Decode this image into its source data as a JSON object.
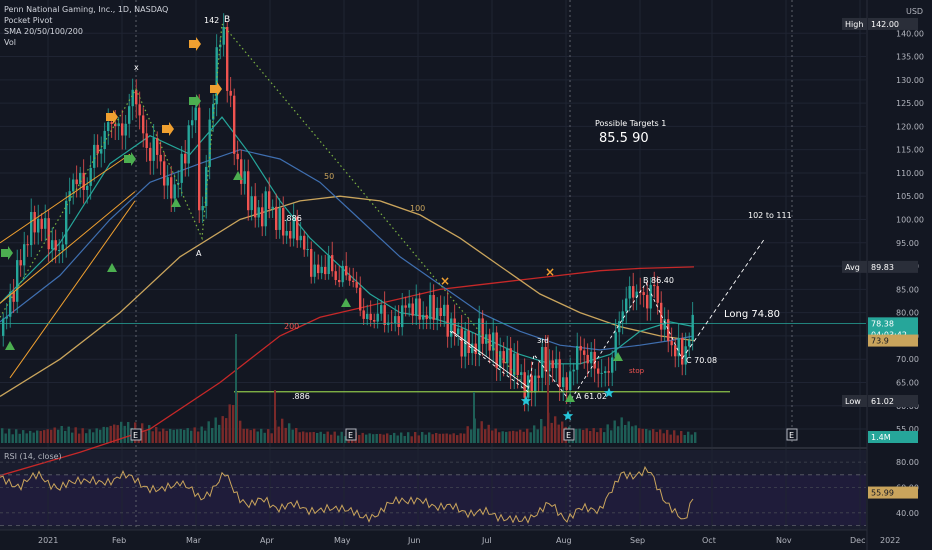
{
  "legend": {
    "symbol_line": "Penn National Gaming, Inc., 1D, NASDAQ",
    "indicators": [
      "Pocket Pivot",
      "SMA 20/50/100/200",
      "Vol"
    ]
  },
  "rsi_label": "RSI (14, close)",
  "currency": "USD",
  "colors": {
    "bg": "#131722",
    "up": "#26a69a",
    "down": "#ef5350",
    "grid": "#1f2433",
    "sma20": "#26a69a",
    "sma50": "#3f6fb0",
    "sma100": "#c9a45c",
    "sma200": "#c62828",
    "pattern": "#2e7d32",
    "annot": "#ffffff",
    "orange": "#f0a030"
  },
  "chart_data": {
    "type": "candlestick",
    "x_axis_labels": [
      "2021",
      "Feb",
      "Mar",
      "Apr",
      "May",
      "Jun",
      "Jul",
      "Aug",
      "Sep",
      "Oct",
      "Nov",
      "Dec",
      "2022"
    ],
    "price_axis": {
      "range": [
        52,
        145
      ],
      "ticks": [
        55.0,
        60.0,
        65.0,
        70.0,
        75.0,
        80.0,
        85.0,
        90.0,
        95.0,
        100.0,
        105.0,
        110.0,
        115.0,
        120.0,
        125.0,
        130.0,
        135.0,
        140.0
      ]
    },
    "price_path": [
      [
        0,
        75
      ],
      [
        8,
        82
      ],
      [
        18,
        90
      ],
      [
        28,
        98
      ],
      [
        38,
        100
      ],
      [
        48,
        96
      ],
      [
        58,
        92
      ],
      [
        66,
        104
      ],
      [
        74,
        110
      ],
      [
        84,
        106
      ],
      [
        92,
        114
      ],
      [
        100,
        116
      ],
      [
        110,
        122
      ],
      [
        120,
        118
      ],
      [
        128,
        124
      ],
      [
        134,
        128
      ],
      [
        140,
        120
      ],
      [
        146,
        114
      ],
      [
        152,
        116
      ],
      [
        160,
        112
      ],
      [
        168,
        105
      ],
      [
        175,
        108
      ],
      [
        182,
        112
      ],
      [
        188,
        120
      ],
      [
        194,
        124
      ],
      [
        200,
        96
      ],
      [
        205,
        112
      ],
      [
        212,
        128
      ],
      [
        218,
        138
      ],
      [
        222,
        142
      ],
      [
        226,
        130
      ],
      [
        232,
        118
      ],
      [
        238,
        110
      ],
      [
        246,
        106
      ],
      [
        256,
        100
      ],
      [
        266,
        104
      ],
      [
        276,
        100
      ],
      [
        286,
        97
      ],
      [
        296,
        98
      ],
      [
        306,
        92
      ],
      [
        316,
        88
      ],
      [
        326,
        91
      ],
      [
        336,
        87
      ],
      [
        346,
        89
      ],
      [
        356,
        84
      ],
      [
        364,
        78
      ],
      [
        372,
        79
      ],
      [
        380,
        80
      ],
      [
        390,
        77
      ],
      [
        400,
        80
      ],
      [
        410,
        82
      ],
      [
        420,
        79
      ],
      [
        430,
        81
      ],
      [
        440,
        80
      ],
      [
        450,
        77
      ],
      [
        460,
        74
      ],
      [
        470,
        72
      ],
      [
        480,
        76
      ],
      [
        490,
        73
      ],
      [
        500,
        70
      ],
      [
        510,
        70
      ],
      [
        520,
        66
      ],
      [
        528,
        63
      ],
      [
        534,
        66
      ],
      [
        542,
        70
      ],
      [
        550,
        69
      ],
      [
        558,
        67
      ],
      [
        566,
        63
      ],
      [
        572,
        70
      ],
      [
        580,
        72
      ],
      [
        588,
        70
      ],
      [
        596,
        68
      ],
      [
        604,
        66
      ],
      [
        610,
        70
      ],
      [
        616,
        76
      ],
      [
        622,
        82
      ],
      [
        628,
        84
      ],
      [
        636,
        85
      ],
      [
        644,
        82
      ],
      [
        652,
        86.4
      ],
      [
        658,
        80
      ],
      [
        664,
        76
      ],
      [
        670,
        73
      ],
      [
        676,
        72
      ],
      [
        682,
        70.5
      ],
      [
        688,
        75
      ],
      [
        694,
        78
      ]
    ],
    "volume_path": [
      [
        0,
        1.2
      ],
      [
        30,
        1.0
      ],
      [
        60,
        1.4
      ],
      [
        90,
        1.1
      ],
      [
        120,
        1.8
      ],
      [
        140,
        1.6
      ],
      [
        160,
        1.2
      ],
      [
        200,
        1.3
      ],
      [
        212,
        2.0
      ],
      [
        222,
        2.2
      ],
      [
        236,
        4.4
      ],
      [
        240,
        1.3
      ],
      [
        270,
        1.1
      ],
      [
        276,
        2.2
      ],
      [
        300,
        1.0
      ],
      [
        340,
        0.9
      ],
      [
        380,
        0.8
      ],
      [
        420,
        0.9
      ],
      [
        460,
        0.8
      ],
      [
        474,
        2.0
      ],
      [
        500,
        1.0
      ],
      [
        530,
        1.2
      ],
      [
        548,
        2.5
      ],
      [
        570,
        1.3
      ],
      [
        600,
        1.2
      ],
      [
        620,
        2.1
      ],
      [
        640,
        1.3
      ],
      [
        660,
        1.1
      ],
      [
        690,
        0.9
      ]
    ],
    "rsi_axis": {
      "range": [
        28,
        88
      ],
      "ticks": [
        40.0,
        60.0,
        80.0
      ]
    },
    "rsi_path": [
      [
        0,
        66
      ],
      [
        20,
        62
      ],
      [
        40,
        70
      ],
      [
        60,
        58
      ],
      [
        80,
        68
      ],
      [
        100,
        62
      ],
      [
        120,
        70
      ],
      [
        140,
        64
      ],
      [
        160,
        56
      ],
      [
        180,
        66
      ],
      [
        200,
        50
      ],
      [
        215,
        62
      ],
      [
        225,
        70
      ],
      [
        235,
        56
      ],
      [
        250,
        46
      ],
      [
        265,
        50
      ],
      [
        280,
        44
      ],
      [
        300,
        46
      ],
      [
        320,
        40
      ],
      [
        340,
        46
      ],
      [
        360,
        36
      ],
      [
        380,
        40
      ],
      [
        400,
        52
      ],
      [
        420,
        48
      ],
      [
        440,
        46
      ],
      [
        460,
        42
      ],
      [
        480,
        40
      ],
      [
        500,
        38
      ],
      [
        520,
        32
      ],
      [
        535,
        40
      ],
      [
        550,
        46
      ],
      [
        566,
        36
      ],
      [
        580,
        42
      ],
      [
        600,
        44
      ],
      [
        615,
        60
      ],
      [
        622,
        72
      ],
      [
        636,
        70
      ],
      [
        650,
        72
      ],
      [
        664,
        52
      ],
      [
        676,
        38
      ],
      [
        684,
        32
      ],
      [
        694,
        55.99
      ]
    ],
    "sma20_path": [
      [
        0,
        82
      ],
      [
        60,
        95
      ],
      [
        110,
        112
      ],
      [
        150,
        118
      ],
      [
        190,
        114
      ],
      [
        222,
        122
      ],
      [
        250,
        114
      ],
      [
        280,
        104
      ],
      [
        310,
        96
      ],
      [
        340,
        90
      ],
      [
        370,
        84
      ],
      [
        400,
        80
      ],
      [
        430,
        79
      ],
      [
        460,
        77
      ],
      [
        490,
        74
      ],
      [
        520,
        71
      ],
      [
        550,
        69
      ],
      [
        580,
        69
      ],
      [
        610,
        71
      ],
      [
        640,
        76
      ],
      [
        670,
        78
      ],
      [
        694,
        77
      ]
    ],
    "sma50_path": [
      [
        0,
        78
      ],
      [
        60,
        88
      ],
      [
        110,
        100
      ],
      [
        150,
        108
      ],
      [
        200,
        112
      ],
      [
        240,
        115
      ],
      [
        280,
        113
      ],
      [
        320,
        108
      ],
      [
        360,
        100
      ],
      [
        400,
        92
      ],
      [
        440,
        86
      ],
      [
        480,
        80
      ],
      [
        520,
        76
      ],
      [
        560,
        73
      ],
      [
        600,
        72
      ],
      [
        640,
        73
      ],
      [
        670,
        74
      ],
      [
        694,
        75
      ]
    ],
    "sma100_path": [
      [
        0,
        62
      ],
      [
        60,
        70
      ],
      [
        120,
        80
      ],
      [
        180,
        92
      ],
      [
        240,
        100
      ],
      [
        300,
        104
      ],
      [
        340,
        105
      ],
      [
        380,
        104
      ],
      [
        420,
        101
      ],
      [
        460,
        96
      ],
      [
        500,
        90
      ],
      [
        540,
        84
      ],
      [
        580,
        80
      ],
      [
        620,
        77
      ],
      [
        660,
        75
      ],
      [
        694,
        74
      ]
    ],
    "sma200_path": [
      [
        0,
        45
      ],
      [
        80,
        50
      ],
      [
        150,
        55
      ],
      [
        220,
        65
      ],
      [
        280,
        75
      ],
      [
        320,
        79
      ],
      [
        360,
        81
      ],
      [
        400,
        83
      ],
      [
        440,
        85
      ],
      [
        480,
        86
      ],
      [
        520,
        87
      ],
      [
        560,
        88
      ],
      [
        600,
        89
      ],
      [
        640,
        89.5
      ],
      [
        694,
        89.83
      ]
    ],
    "price_labels": {
      "high": "High",
      "high_value": "142.00",
      "avg": "Avg",
      "avg_value": "89.83",
      "last_value": "78.38",
      "countdown": "04:03:42",
      "low": "Low",
      "low_value": "61.02",
      "ma_value": "73.9",
      "vol_value": "1.4M",
      "rsi_value": "55.99"
    },
    "annotations": {
      "point_x": "x",
      "point_142": "142",
      "point_b": "B",
      "point_a": "A",
      "fib_886_top": ".886",
      "fib_886_bottom": ".886",
      "ma50": "50",
      "ma100": "100",
      "ma200": "200",
      "targets_title": "Possible Targets 1",
      "targets_values": "85.5  90",
      "range_label": "102 to 111",
      "b_label": "B 86.40",
      "c_label": "C 70.08",
      "a_label": "A 61.02",
      "long_label": "Long 74.80",
      "stop_label": "stop",
      "third_label": "3rd",
      "earnings_marker": "E"
    }
  }
}
